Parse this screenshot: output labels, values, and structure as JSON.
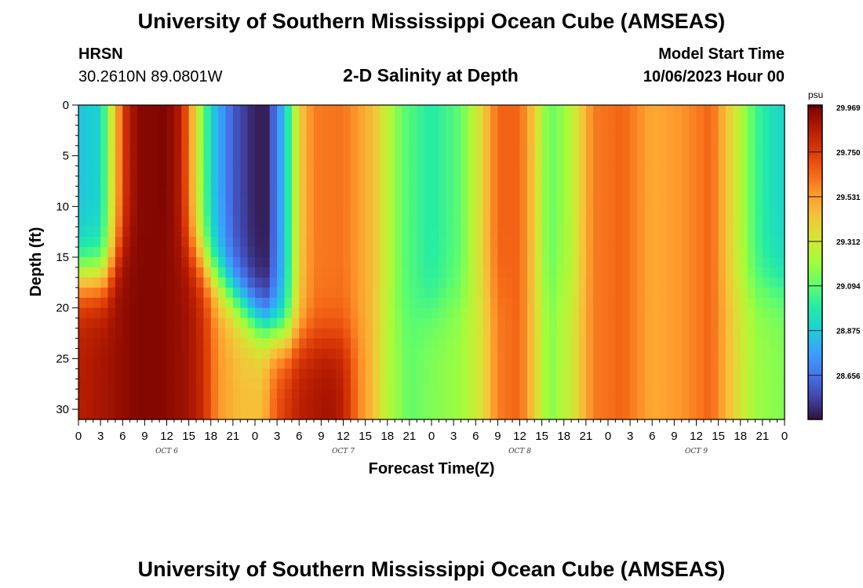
{
  "page": {
    "title": "University of Southern Mississippi Ocean Cube (AMSEAS)",
    "footer_title": "University of Southern Mississippi Ocean Cube (AMSEAS)",
    "station": "HRSN",
    "location": "30.2610N  89.0801W",
    "chart_heading": "2-D Salinity at Depth",
    "model_start_label": "Model Start Time",
    "model_start_value": "10/06/2023 Hour 00"
  },
  "colors": {
    "colormap": [
      "#30123b",
      "#4145ab",
      "#4675ed",
      "#39a2fc",
      "#1bcfd4",
      "#24eca6",
      "#61fc6c",
      "#a4fc3b",
      "#d1e834",
      "#f3c63a",
      "#fe9b2d",
      "#f36315",
      "#d93806",
      "#b11901",
      "#7a0402"
    ]
  },
  "chart_data": {
    "type": "heatmap",
    "title": "2-D Salinity at Depth",
    "xlabel": "Forecast Time(Z)",
    "ylabel": "Depth (ft)",
    "colorbar_unit": "psu",
    "colorbar_ticks": [
      "29.969",
      "29.750",
      "29.531",
      "29.312",
      "29.094",
      "28.875",
      "28.656"
    ],
    "colorbar_range": [
      28.44,
      29.98
    ],
    "x_tick_labels": [
      "0",
      "3",
      "6",
      "9",
      "12",
      "15",
      "18",
      "21",
      "0",
      "3",
      "6",
      "9",
      "12",
      "15",
      "18",
      "21",
      "0",
      "3",
      "6",
      "9",
      "12",
      "15",
      "18",
      "21",
      "0",
      "3",
      "6",
      "9",
      "12",
      "15",
      "18",
      "21",
      "0"
    ],
    "x_range_hours": [
      0,
      96
    ],
    "day_labels": [
      {
        "label": "OCT 6",
        "hour": 12
      },
      {
        "label": "OCT 7",
        "hour": 36
      },
      {
        "label": "OCT 8",
        "hour": 60
      },
      {
        "label": "OCT 9",
        "hour": 84
      }
    ],
    "y_tick_labels": [
      "0",
      "5",
      "10",
      "15",
      "20",
      "25",
      "30"
    ],
    "y_ticks": [
      0,
      5,
      10,
      15,
      20,
      25,
      30
    ],
    "ylim": [
      0,
      31
    ],
    "surface_profile": [
      [
        0,
        28.85
      ],
      [
        3,
        28.9
      ],
      [
        5,
        29.45
      ],
      [
        6.5,
        29.8
      ],
      [
        8,
        29.95
      ],
      [
        12,
        29.97
      ],
      [
        14,
        29.85
      ],
      [
        16,
        29.35
      ],
      [
        18,
        28.9
      ],
      [
        21,
        28.6
      ],
      [
        24,
        28.47
      ],
      [
        25.5,
        28.47
      ],
      [
        28,
        28.85
      ],
      [
        30,
        29.4
      ],
      [
        32,
        29.6
      ],
      [
        36,
        29.62
      ],
      [
        40,
        29.45
      ],
      [
        44,
        29.1
      ],
      [
        48,
        28.98
      ],
      [
        52,
        29.1
      ],
      [
        55,
        29.4
      ],
      [
        57,
        29.65
      ],
      [
        60,
        29.65
      ],
      [
        62,
        29.4
      ],
      [
        64,
        29.1
      ],
      [
        67,
        29.25
      ],
      [
        70,
        29.6
      ],
      [
        74,
        29.65
      ],
      [
        78,
        29.5
      ],
      [
        82,
        29.55
      ],
      [
        86,
        29.65
      ],
      [
        89,
        29.35
      ],
      [
        92,
        29.05
      ],
      [
        94,
        28.95
      ],
      [
        96,
        28.9
      ]
    ],
    "bottom_profile": [
      [
        0,
        29.85
      ],
      [
        4,
        29.9
      ],
      [
        8,
        29.96
      ],
      [
        11,
        29.96
      ],
      [
        15,
        29.9
      ],
      [
        17,
        29.8
      ],
      [
        19,
        29.55
      ],
      [
        22,
        29.45
      ],
      [
        25,
        29.45
      ],
      [
        27,
        29.7
      ],
      [
        30,
        29.85
      ],
      [
        34,
        29.9
      ],
      [
        36,
        29.85
      ],
      [
        38,
        29.6
      ],
      [
        40,
        29.45
      ],
      [
        42,
        29.25
      ],
      [
        45,
        29.1
      ],
      [
        48,
        29.15
      ],
      [
        52,
        29.2
      ],
      [
        55,
        29.35
      ],
      [
        57,
        29.6
      ],
      [
        60,
        29.65
      ],
      [
        62,
        29.4
      ],
      [
        64,
        29.15
      ],
      [
        67,
        29.3
      ],
      [
        70,
        29.6
      ],
      [
        74,
        29.65
      ],
      [
        78,
        29.5
      ],
      [
        82,
        29.55
      ],
      [
        86,
        29.65
      ],
      [
        89,
        29.4
      ],
      [
        92,
        29.2
      ],
      [
        96,
        29.15
      ]
    ],
    "transition_depth_profile": [
      [
        0,
        17
      ],
      [
        4,
        17
      ],
      [
        6,
        14
      ],
      [
        10,
        12
      ],
      [
        16,
        15
      ],
      [
        20,
        18
      ],
      [
        24,
        21
      ],
      [
        28,
        23
      ],
      [
        32,
        23
      ],
      [
        38,
        23
      ],
      [
        44,
        21
      ],
      [
        52,
        19
      ],
      [
        60,
        18
      ],
      [
        96,
        18
      ]
    ]
  }
}
